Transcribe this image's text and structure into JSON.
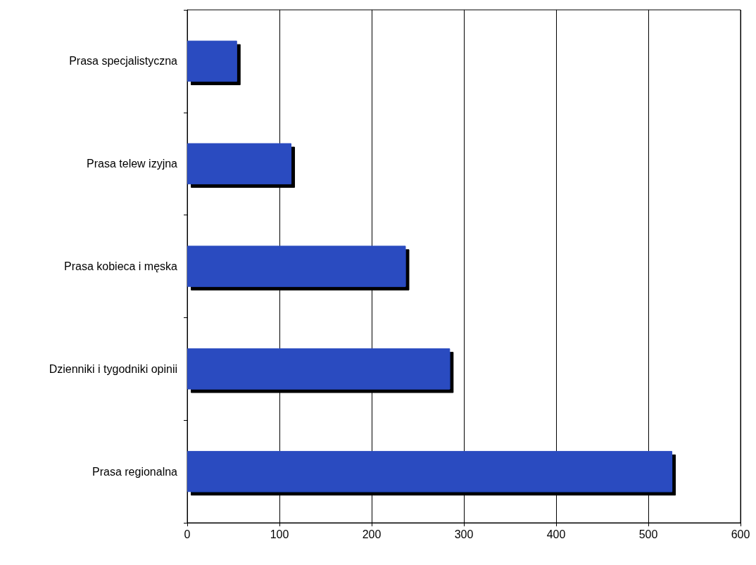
{
  "chart_data": {
    "type": "bar",
    "orientation": "horizontal",
    "categories": [
      "Prasa specjalistyczna",
      "Prasa telew izyjna",
      "Prasa kobieca i męska",
      "Dzienniki i tygodniki opinii",
      "Prasa regionalna"
    ],
    "values": [
      54,
      113,
      237,
      285,
      526
    ],
    "color": "#2a4cc0",
    "xlim": [
      0,
      600
    ],
    "xticks": [
      0,
      100,
      200,
      300,
      400,
      500,
      600
    ],
    "grid": "x"
  }
}
